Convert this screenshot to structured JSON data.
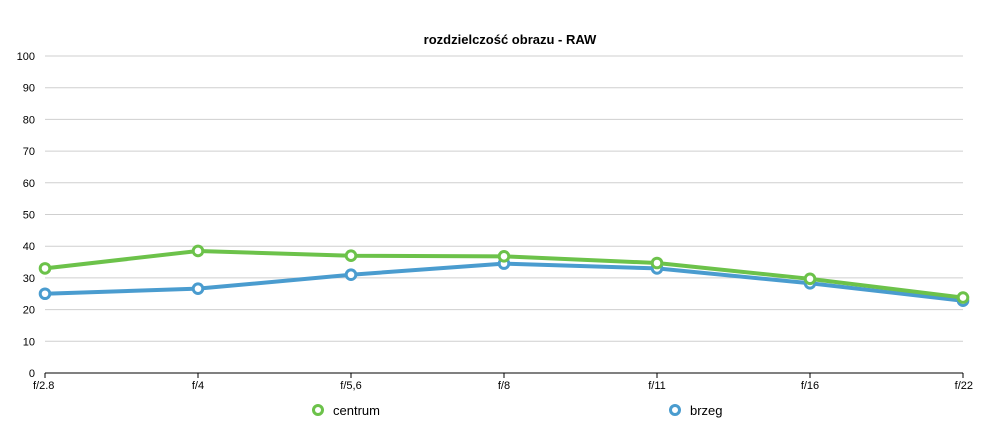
{
  "chart_data": {
    "type": "line",
    "title": "rozdzielczość obrazu - RAW",
    "xlabel": "",
    "ylabel": "",
    "categories": [
      "f/2.8",
      "f/4",
      "f/5,6",
      "f/8",
      "f/11",
      "f/16",
      "f/22"
    ],
    "ylim": [
      0,
      100
    ],
    "yticks": [
      0,
      10,
      20,
      30,
      40,
      50,
      60,
      70,
      80,
      90,
      100
    ],
    "grid": true,
    "legend_position": "bottom",
    "series": [
      {
        "name": "centrum",
        "color": "#6cc24a",
        "values": [
          33,
          38.5,
          37,
          36.8,
          34.7,
          29.7,
          23.8
        ]
      },
      {
        "name": "brzeg",
        "color": "#4a9ccf",
        "values": [
          25,
          26.6,
          31,
          34.5,
          33,
          28.3,
          22.8
        ]
      }
    ]
  }
}
